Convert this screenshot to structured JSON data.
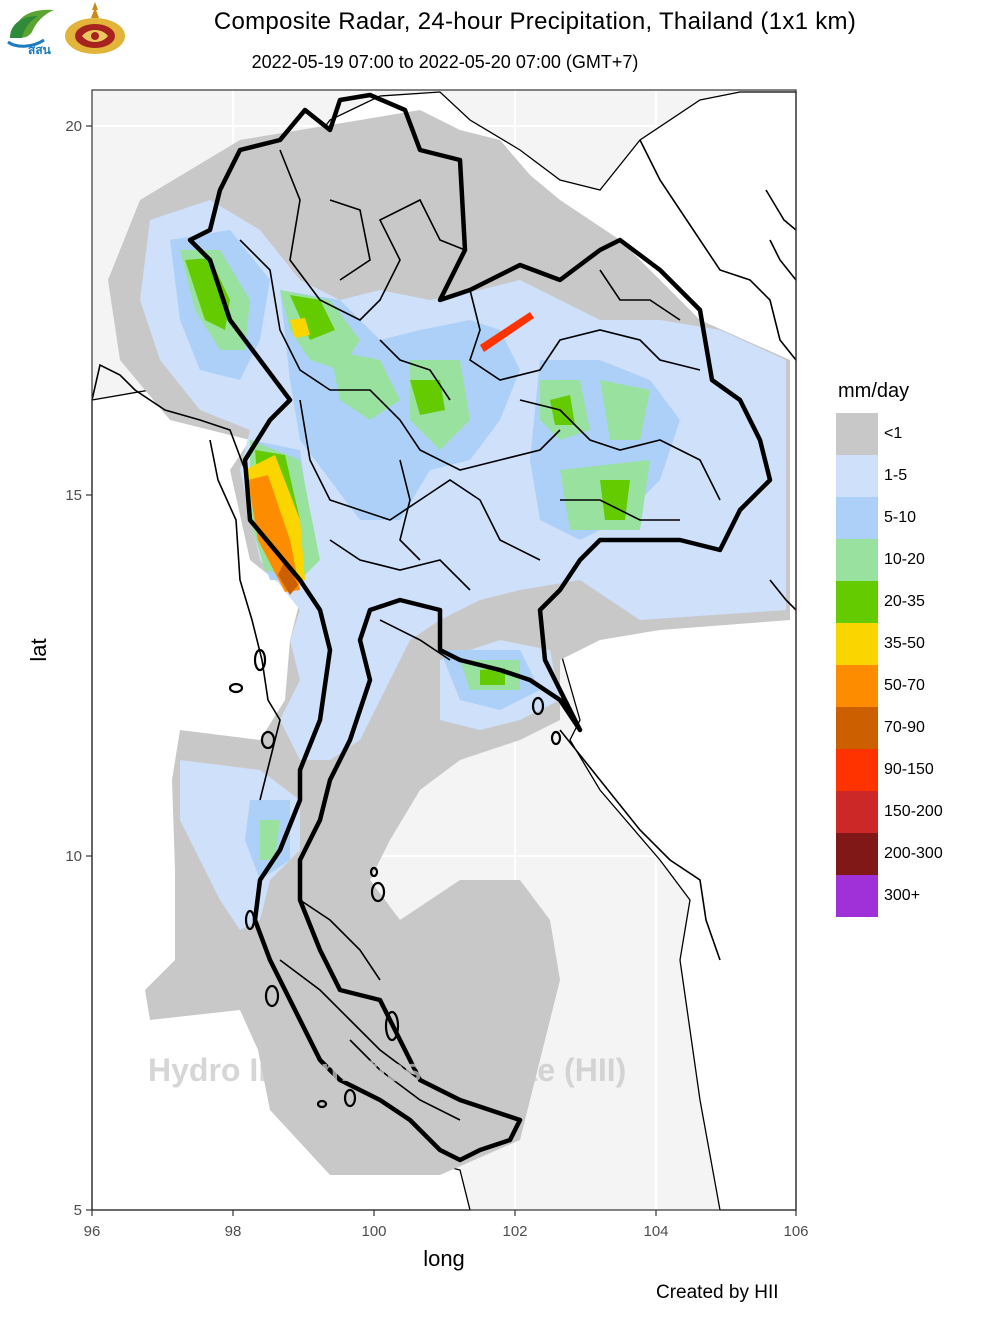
{
  "title": "Composite Radar, 24-hour Precipitation, Thailand (1x1 km)",
  "subtitle": "2022-05-19 07:00 to 2022-05-20 07:00 (GMT+7)",
  "logos": {
    "left_text": "สสน"
  },
  "watermark": "Hydro Informatics Institute (HII)",
  "credit": "Created by HII",
  "colors": {
    "panel_bg": "#f4f4f4",
    "grid": "#ffffff",
    "land": "#ffffff",
    "boundary": "#000000"
  },
  "chart_data": {
    "type": "heatmap",
    "xlabel": "long",
    "ylabel": "lat",
    "xlim": [
      96,
      106
    ],
    "ylim": [
      5,
      20.5
    ],
    "xticks": [
      "96",
      "98",
      "100",
      "102",
      "104",
      "106"
    ],
    "yticks": [
      "5",
      "10",
      "15",
      "20"
    ],
    "legend": {
      "title": "mm/day",
      "placement": "right",
      "items": [
        {
          "label": "<1",
          "color": "#c8c8c8"
        },
        {
          "label": "1-5",
          "color": "#cfe0fb"
        },
        {
          "label": "5-10",
          "color": "#acd0f8"
        },
        {
          "label": "10-20",
          "color": "#99e19e"
        },
        {
          "label": "20-35",
          "color": "#64cb01"
        },
        {
          "label": "35-50",
          "color": "#fbd500"
        },
        {
          "label": "50-70",
          "color": "#fd8c00"
        },
        {
          "label": "70-90",
          "color": "#cc6000"
        },
        {
          "label": "90-150",
          "color": "#ff3300"
        },
        {
          "label": "150-200",
          "color": "#cd2828"
        },
        {
          "label": "200-300",
          "color": "#801818"
        },
        {
          "label": "300+",
          "color": "#a030d8"
        }
      ]
    }
  }
}
